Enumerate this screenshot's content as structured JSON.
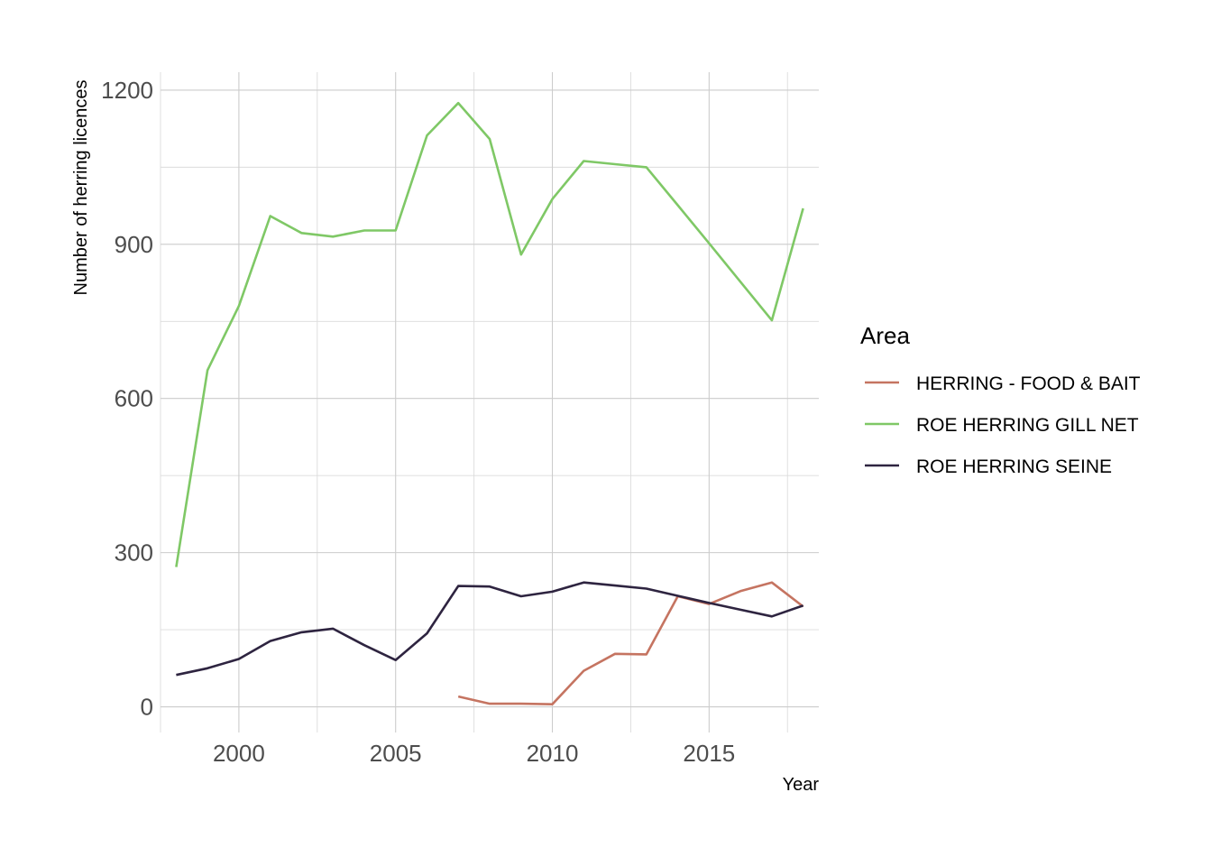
{
  "chart_data": {
    "type": "line",
    "title": "",
    "xlabel": "Year",
    "ylabel": "Number of herring licences",
    "xlim": [
      1997.5,
      2018.5
    ],
    "ylim": [
      -50,
      1235
    ],
    "x_ticks": [
      2000,
      2005,
      2010,
      2015
    ],
    "x_tick_labels": [
      "2000",
      "2005",
      "2010",
      "2015"
    ],
    "y_ticks": [
      0,
      300,
      600,
      900,
      1200
    ],
    "y_tick_labels": [
      "0",
      "300",
      "600",
      "900",
      "1200"
    ],
    "grid": true,
    "legend": {
      "title": "Area",
      "position": "right"
    },
    "series": [
      {
        "name": "HERRING - FOOD & BAIT",
        "color": "#c57461",
        "x": [
          2007,
          2008,
          2009,
          2010,
          2011,
          2012,
          2013,
          2014,
          2015,
          2016,
          2017,
          2018
        ],
        "values": [
          20,
          6,
          6,
          5,
          70,
          103,
          102,
          215,
          200,
          225,
          242,
          195
        ]
      },
      {
        "name": "ROE HERRING GILL NET",
        "color": "#7fc866",
        "x": [
          1998,
          1999,
          2000,
          2001,
          2002,
          2003,
          2004,
          2005,
          2006,
          2007,
          2008,
          2009,
          2010,
          2011,
          2012,
          2013,
          2014,
          2015,
          2016,
          2017,
          2018
        ],
        "values": [
          272,
          655,
          780,
          955,
          922,
          915,
          927,
          927,
          1112,
          1175,
          1105,
          880,
          988,
          1062,
          1056,
          1050,
          976,
          902,
          827,
          752,
          970
        ]
      },
      {
        "name": "ROE HERRING SEINE",
        "color": "#2e2440",
        "x": [
          1998,
          1999,
          2000,
          2001,
          2002,
          2003,
          2004,
          2005,
          2006,
          2007,
          2008,
          2009,
          2010,
          2011,
          2012,
          2013,
          2014,
          2015,
          2016,
          2017,
          2018
        ],
        "values": [
          62,
          75,
          93,
          128,
          145,
          152,
          120,
          91,
          143,
          235,
          234,
          215,
          224,
          242,
          236,
          230,
          216,
          202,
          189,
          176,
          197
        ]
      }
    ]
  }
}
